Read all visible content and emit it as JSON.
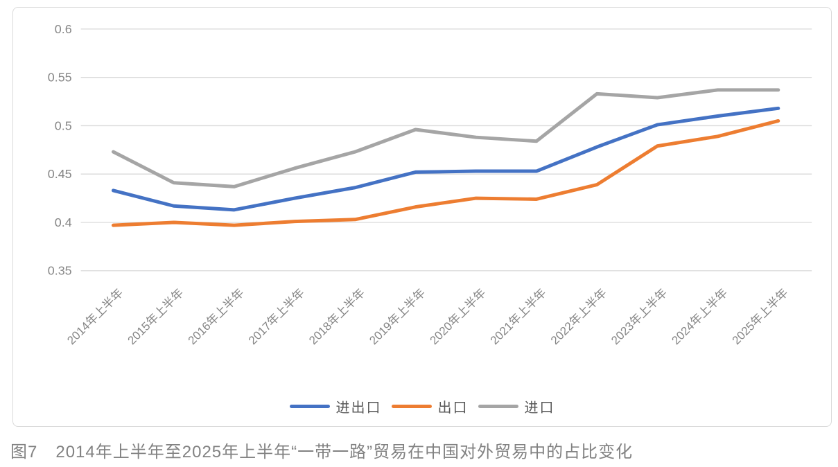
{
  "caption": {
    "figure_label": "图7",
    "text": "2014年上半年至2025年上半年“一带一路”贸易在中国对外贸易中的占比变化"
  },
  "chart_data": {
    "type": "line",
    "title": "",
    "xlabel": "",
    "ylabel": "",
    "categories": [
      "2014年上半年",
      "2015年上半年",
      "2016年上半年",
      "2017年上半年",
      "2018年上半年",
      "2019年上半年",
      "2020年上半年",
      "2021年上半年",
      "2022年上半年",
      "2023年上半年",
      "2024年上半年",
      "2025年上半年"
    ],
    "series": [
      {
        "name": "进出口",
        "color": "#4472C4",
        "values": [
          0.433,
          0.417,
          0.413,
          0.425,
          0.436,
          0.452,
          0.453,
          0.453,
          0.478,
          0.501,
          0.51,
          0.518
        ]
      },
      {
        "name": "出口",
        "color": "#ED7D31",
        "values": [
          0.397,
          0.4,
          0.397,
          0.401,
          0.403,
          0.416,
          0.425,
          0.424,
          0.439,
          0.479,
          0.489,
          0.505
        ]
      },
      {
        "name": "进口",
        "color": "#A5A5A5",
        "values": [
          0.473,
          0.441,
          0.437,
          0.456,
          0.473,
          0.496,
          0.488,
          0.484,
          0.533,
          0.529,
          0.537,
          0.537
        ]
      }
    ],
    "ylim": [
      0.35,
      0.6
    ],
    "ytick_step": 0.05,
    "ytick_labels": [
      "0.6",
      "0.55",
      "0.5",
      "0.45",
      "0.4",
      "0.35"
    ],
    "ytick_values": [
      0.6,
      0.55,
      0.5,
      0.45,
      0.4,
      0.35
    ],
    "grid": true,
    "legend_position": "bottom",
    "colors": {
      "axis_label": "#868686",
      "gridline": "#d9d9d9",
      "legend_label": "#595959",
      "caption": "#828282",
      "card_border": "#d9d9d9"
    }
  }
}
